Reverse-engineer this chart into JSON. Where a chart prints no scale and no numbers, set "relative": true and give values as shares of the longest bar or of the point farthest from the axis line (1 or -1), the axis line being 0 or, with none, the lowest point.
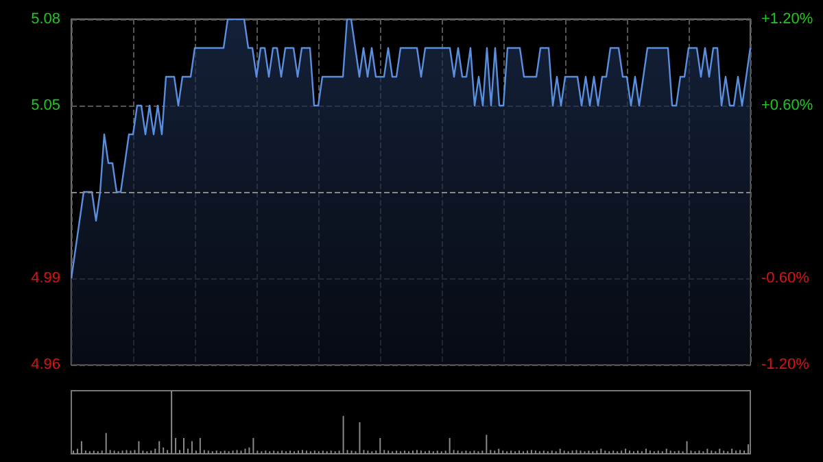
{
  "chart_data": [
    {
      "type": "area",
      "categories": [
        null,
        null,
        null,
        null,
        null,
        null,
        null,
        null,
        null,
        null,
        null,
        null,
        null,
        null,
        null,
        null,
        null,
        null,
        null,
        null,
        null,
        null,
        null,
        null,
        null,
        null,
        null,
        null,
        null,
        null,
        null,
        null,
        null,
        null,
        null,
        null,
        null,
        null,
        null,
        null,
        null,
        null,
        null,
        null,
        null,
        null,
        null,
        null,
        null,
        null,
        null,
        null,
        null,
        null,
        null,
        null,
        null,
        null,
        null,
        null,
        null,
        null,
        null,
        null,
        null,
        null,
        null,
        null,
        null,
        null,
        null,
        null,
        null,
        null,
        null,
        null,
        null,
        null,
        null,
        null,
        null,
        null,
        null,
        null,
        null,
        null,
        null,
        null,
        null,
        null,
        null,
        null,
        null,
        null,
        null,
        null,
        null,
        null,
        null,
        null,
        null,
        null,
        null,
        null,
        null,
        null,
        null,
        null,
        null,
        null,
        null,
        null,
        null,
        null,
        null,
        null,
        null,
        null,
        null,
        null,
        null,
        null,
        null,
        null,
        null,
        null,
        null,
        null,
        null,
        null,
        null,
        null,
        null,
        null,
        null,
        null,
        null,
        null,
        null,
        null,
        null,
        null,
        null,
        null,
        null,
        null,
        null,
        null,
        null,
        null,
        null,
        null,
        null,
        null,
        null,
        null,
        null,
        null,
        null,
        null,
        null,
        null,
        null,
        null,
        null,
        null
      ],
      "series": [
        {
          "color": "#5a8fe0",
          "values": [
            4.99,
            5.0,
            5.01,
            5.02,
            5.02,
            5.02,
            5.01,
            5.02,
            5.04,
            5.03,
            5.03,
            5.02,
            5.02,
            5.03,
            5.04,
            5.04,
            5.05,
            5.05,
            5.04,
            5.05,
            5.04,
            5.05,
            5.04,
            5.06,
            5.06,
            5.06,
            5.05,
            5.06,
            5.06,
            5.06,
            5.07,
            5.07,
            5.07,
            5.07,
            5.07,
            5.07,
            5.07,
            5.07,
            5.08,
            5.08,
            5.08,
            5.08,
            5.08,
            5.07,
            5.07,
            5.06,
            5.07,
            5.07,
            5.06,
            5.07,
            5.07,
            5.06,
            5.07,
            5.07,
            5.07,
            5.06,
            5.07,
            5.07,
            5.07,
            5.05,
            5.05,
            5.06,
            5.06,
            5.06,
            5.06,
            5.06,
            5.06,
            5.08,
            5.08,
            5.07,
            5.06,
            5.07,
            5.06,
            5.07,
            5.06,
            5.06,
            5.06,
            5.07,
            5.06,
            5.06,
            5.07,
            5.07,
            5.07,
            5.07,
            5.07,
            5.06,
            5.07,
            5.07,
            5.07,
            5.07,
            5.07,
            5.07,
            5.07,
            5.06,
            5.07,
            5.06,
            5.06,
            5.07,
            5.05,
            5.06,
            5.05,
            5.07,
            5.05,
            5.07,
            5.05,
            5.05,
            5.07,
            5.07,
            5.07,
            5.07,
            5.06,
            5.06,
            5.06,
            5.06,
            5.07,
            5.07,
            5.07,
            5.05,
            5.06,
            5.05,
            5.06,
            5.06,
            5.06,
            5.06,
            5.05,
            5.06,
            5.05,
            5.06,
            5.05,
            5.06,
            5.06,
            5.07,
            5.07,
            5.07,
            5.06,
            5.06,
            5.05,
            5.06,
            5.05,
            5.06,
            5.07,
            5.07,
            5.07,
            5.07,
            5.07,
            5.07,
            5.05,
            5.05,
            5.06,
            5.06,
            5.07,
            5.07,
            5.07,
            5.06,
            5.07,
            5.06,
            5.07,
            5.07,
            5.05,
            5.06,
            5.05,
            5.05,
            5.06,
            5.05,
            5.06,
            5.07
          ]
        }
      ],
      "ylim": [
        4.96,
        5.08
      ],
      "yticks": [
        4.96,
        4.99,
        5.05,
        5.08
      ],
      "y2lim": [
        -1.2,
        1.2
      ],
      "y2ticks": [
        {
          "value": -1.2,
          "label": "-1.20%"
        },
        {
          "value": -0.6,
          "label": "-0.60%"
        },
        {
          "value": 0,
          "label": null
        },
        {
          "value": 0.6,
          "label": "+0.60%"
        },
        {
          "value": 1.2,
          "label": "+1.20%"
        }
      ],
      "ref_lines": [
        {
          "axis": "y",
          "value": 5.02,
          "color": "#888888",
          "line_style": "dashed"
        }
      ],
      "grid": true,
      "tick_labels": "y"
    },
    {
      "type": "bar",
      "relative": true,
      "tick_labels": false,
      "categories": [
        null,
        null,
        null,
        null,
        null,
        null,
        null,
        null,
        null,
        null,
        null,
        null,
        null,
        null,
        null,
        null,
        null,
        null,
        null,
        null,
        null,
        null,
        null,
        null,
        null,
        null,
        null,
        null,
        null,
        null,
        null,
        null,
        null,
        null,
        null,
        null,
        null,
        null,
        null,
        null,
        null,
        null,
        null,
        null,
        null,
        null,
        null,
        null,
        null,
        null,
        null,
        null,
        null,
        null,
        null,
        null,
        null,
        null,
        null,
        null,
        null,
        null,
        null,
        null,
        null,
        null,
        null,
        null,
        null,
        null,
        null,
        null,
        null,
        null,
        null,
        null,
        null,
        null,
        null,
        null,
        null,
        null,
        null,
        null,
        null,
        null,
        null,
        null,
        null,
        null,
        null,
        null,
        null,
        null,
        null,
        null,
        null,
        null,
        null,
        null,
        null,
        null,
        null,
        null,
        null,
        null,
        null,
        null,
        null,
        null,
        null,
        null,
        null,
        null,
        null,
        null,
        null,
        null,
        null,
        null,
        null,
        null,
        null,
        null,
        null,
        null,
        null,
        null,
        null,
        null,
        null,
        null,
        null,
        null,
        null,
        null,
        null,
        null,
        null,
        null,
        null,
        null,
        null,
        null,
        null,
        null,
        null,
        null,
        null,
        null,
        null,
        null,
        null,
        null,
        null,
        null,
        null,
        null,
        null,
        null,
        null,
        null,
        null,
        null,
        null,
        null
      ],
      "series": [
        {
          "color": "#8a8a8a",
          "values": [
            0.05,
            0.08,
            0.2,
            0.05,
            0.04,
            0.05,
            0.04,
            0.05,
            0.33,
            0.06,
            0.05,
            0.04,
            0.05,
            0.06,
            0.05,
            0.06,
            0.2,
            0.05,
            0.04,
            0.05,
            0.08,
            0.2,
            0.1,
            0.06,
            1,
            0.25,
            0.06,
            0.25,
            0.08,
            0.2,
            0.05,
            0.25,
            0.06,
            0.05,
            0.04,
            0.05,
            0.04,
            0.05,
            0.04,
            0.05,
            0.06,
            0.05,
            0.08,
            0.1,
            0.25,
            0.05,
            0.04,
            0.05,
            0.04,
            0.05,
            0.04,
            0.05,
            0.04,
            0.05,
            0.04,
            0.05,
            0.06,
            0.05,
            0.04,
            0.05,
            0.04,
            0.05,
            0.04,
            0.05,
            0.04,
            0.05,
            0.6,
            0.06,
            0.05,
            0.04,
            0.5,
            0.06,
            0.05,
            0.04,
            0.05,
            0.25,
            0.06,
            0.05,
            0.04,
            0.05,
            0.04,
            0.05,
            0.04,
            0.05,
            0.06,
            0.05,
            0.04,
            0.05,
            0.04,
            0.05,
            0.04,
            0.05,
            0.25,
            0.06,
            0.05,
            0.04,
            0.05,
            0.04,
            0.05,
            0.04,
            0.05,
            0.3,
            0.06,
            0.05,
            0.08,
            0.05,
            0.04,
            0.05,
            0.04,
            0.05,
            0.04,
            0.05,
            0.06,
            0.05,
            0.04,
            0.05,
            0.04,
            0.05,
            0.04,
            0.08,
            0.05,
            0.04,
            0.05,
            0.06,
            0.05,
            0.04,
            0.05,
            0.04,
            0.05,
            0.08,
            0.05,
            0.04,
            0.05,
            0.04,
            0.05,
            0.08,
            0.05,
            0.04,
            0.05,
            0.04,
            0.08,
            0.05,
            0.04,
            0.05,
            0.04,
            0.08,
            0.05,
            0.04,
            0.05,
            0.04,
            0.2,
            0.05,
            0.04,
            0.05,
            0.04,
            0.08,
            0.05,
            0.04,
            0.08,
            0.05,
            0.04,
            0.08,
            0.05,
            0.06,
            0.05,
            0.15
          ]
        }
      ]
    }
  ]
}
